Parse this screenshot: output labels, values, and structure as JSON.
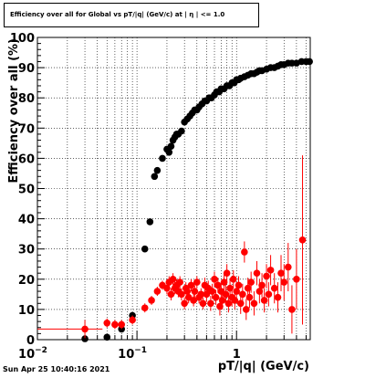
{
  "timestamp": "Sun Apr 25 10:40:16 2021",
  "chart_data": {
    "type": "scatter",
    "title": "Efficiency over all for Global vs pT/|q| (GeV/c) at | η | <= 1.0",
    "xlabel": "pT/|q| (GeV/c)",
    "ylabel": "Efficiency over all (%)",
    "xscale": "log",
    "xlim": [
      0.01,
      5.5
    ],
    "ylim": [
      0,
      100
    ],
    "x_tick_labels": [
      {
        "value": 0.01,
        "label": "10",
        "exp": "−2"
      },
      {
        "value": 0.1,
        "label": "10",
        "exp": "−1"
      },
      {
        "value": 1,
        "label": "1",
        "exp": ""
      }
    ],
    "y_ticks": [
      0,
      10,
      20,
      30,
      40,
      50,
      60,
      70,
      80,
      90,
      100
    ],
    "grid": true,
    "legend": "none",
    "series": [
      {
        "color": "#000000",
        "points": [
          [
            0.03,
            0.3,
            0
          ],
          [
            0.05,
            0.8,
            0
          ],
          [
            0.07,
            3.5,
            0
          ],
          [
            0.09,
            8,
            0
          ],
          [
            0.12,
            30,
            0
          ],
          [
            0.135,
            39,
            0
          ],
          [
            0.15,
            54,
            0
          ],
          [
            0.16,
            56,
            0
          ],
          [
            0.18,
            60,
            0
          ],
          [
            0.2,
            63,
            0
          ],
          [
            0.21,
            62,
            0
          ],
          [
            0.22,
            64,
            0
          ],
          [
            0.23,
            66,
            0
          ],
          [
            0.24,
            67,
            0
          ],
          [
            0.25,
            68,
            0
          ],
          [
            0.26,
            68,
            0
          ],
          [
            0.28,
            69,
            0
          ],
          [
            0.3,
            72,
            0
          ],
          [
            0.32,
            73,
            0
          ],
          [
            0.34,
            74,
            0
          ],
          [
            0.36,
            75,
            0
          ],
          [
            0.38,
            76,
            0
          ],
          [
            0.4,
            76,
            0
          ],
          [
            0.42,
            77,
            0
          ],
          [
            0.45,
            78,
            0
          ],
          [
            0.48,
            79,
            0
          ],
          [
            0.5,
            79,
            0
          ],
          [
            0.53,
            80,
            0
          ],
          [
            0.56,
            80,
            0
          ],
          [
            0.6,
            81,
            0
          ],
          [
            0.63,
            82,
            0
          ],
          [
            0.67,
            82,
            0
          ],
          [
            0.7,
            83,
            0
          ],
          [
            0.75,
            83,
            0
          ],
          [
            0.8,
            84,
            0
          ],
          [
            0.85,
            84,
            0
          ],
          [
            0.9,
            85,
            0
          ],
          [
            0.95,
            85,
            0
          ],
          [
            1.0,
            86,
            0
          ],
          [
            1.05,
            86,
            0
          ],
          [
            1.1,
            86.5,
            0
          ],
          [
            1.2,
            87,
            0
          ],
          [
            1.3,
            87.5,
            0
          ],
          [
            1.4,
            88,
            0
          ],
          [
            1.5,
            88,
            0
          ],
          [
            1.6,
            88.5,
            0
          ],
          [
            1.7,
            89,
            0
          ],
          [
            1.8,
            89,
            0
          ],
          [
            2.0,
            89.5,
            0
          ],
          [
            2.2,
            90,
            0
          ],
          [
            2.4,
            90,
            0
          ],
          [
            2.6,
            90.5,
            0
          ],
          [
            2.8,
            91,
            0
          ],
          [
            3.0,
            91,
            0
          ],
          [
            3.3,
            91.5,
            0
          ],
          [
            3.6,
            91.5,
            0
          ],
          [
            4.0,
            91.5,
            0
          ],
          [
            4.5,
            92,
            0
          ],
          [
            5.0,
            92,
            0
          ],
          [
            5.4,
            92,
            0
          ]
        ]
      },
      {
        "color": "#ff0000",
        "points": [
          [
            0.03,
            3.5,
            3
          ],
          [
            0.05,
            5.5,
            1.5
          ],
          [
            0.06,
            5,
            1.5
          ],
          [
            0.07,
            5,
            1.5
          ],
          [
            0.09,
            6.5,
            1.5
          ],
          [
            0.12,
            10.5,
            1.5
          ],
          [
            0.14,
            13,
            1.5
          ],
          [
            0.16,
            16,
            1.5
          ],
          [
            0.18,
            18,
            1.5
          ],
          [
            0.2,
            17,
            2
          ],
          [
            0.21,
            19,
            2
          ],
          [
            0.22,
            15,
            2
          ],
          [
            0.23,
            20,
            2
          ],
          [
            0.24,
            17,
            2
          ],
          [
            0.25,
            18,
            2
          ],
          [
            0.26,
            16,
            2
          ],
          [
            0.27,
            19,
            2
          ],
          [
            0.28,
            15,
            2
          ],
          [
            0.3,
            12,
            2
          ],
          [
            0.31,
            17,
            2
          ],
          [
            0.32,
            16,
            2
          ],
          [
            0.33,
            14,
            2
          ],
          [
            0.35,
            18,
            2
          ],
          [
            0.37,
            13,
            2
          ],
          [
            0.38,
            16,
            2
          ],
          [
            0.4,
            19,
            2
          ],
          [
            0.42,
            14,
            2
          ],
          [
            0.44,
            15,
            2
          ],
          [
            0.46,
            12,
            2
          ],
          [
            0.48,
            18,
            2.5
          ],
          [
            0.5,
            15,
            2.5
          ],
          [
            0.52,
            17,
            2.5
          ],
          [
            0.55,
            12,
            2.5
          ],
          [
            0.57,
            16,
            2.5
          ],
          [
            0.6,
            20,
            2.5
          ],
          [
            0.62,
            14,
            2.5
          ],
          [
            0.65,
            18,
            2.5
          ],
          [
            0.68,
            11,
            3
          ],
          [
            0.7,
            16,
            3
          ],
          [
            0.72,
            13,
            3
          ],
          [
            0.75,
            19,
            3
          ],
          [
            0.78,
            15,
            3
          ],
          [
            0.8,
            22,
            3
          ],
          [
            0.83,
            12,
            3
          ],
          [
            0.86,
            17,
            3
          ],
          [
            0.9,
            14,
            3
          ],
          [
            0.93,
            20,
            3
          ],
          [
            0.96,
            13,
            3
          ],
          [
            1.0,
            16,
            3
          ],
          [
            1.05,
            18,
            3
          ],
          [
            1.1,
            12,
            3.5
          ],
          [
            1.15,
            15,
            3.5
          ],
          [
            1.2,
            29,
            3.5
          ],
          [
            1.25,
            10,
            3.5
          ],
          [
            1.3,
            17,
            3.5
          ],
          [
            1.35,
            14,
            3.5
          ],
          [
            1.4,
            19,
            3.5
          ],
          [
            1.5,
            12,
            4
          ],
          [
            1.6,
            22,
            4
          ],
          [
            1.7,
            16,
            4
          ],
          [
            1.8,
            18,
            4
          ],
          [
            1.9,
            13,
            4
          ],
          [
            2.0,
            21,
            4
          ],
          [
            2.1,
            15,
            4
          ],
          [
            2.2,
            23,
            5
          ],
          [
            2.4,
            17,
            5
          ],
          [
            2.6,
            14,
            5
          ],
          [
            2.8,
            22,
            6
          ],
          [
            3.0,
            19,
            6
          ],
          [
            3.3,
            24,
            8
          ],
          [
            3.6,
            10,
            8
          ],
          [
            4.0,
            20,
            10
          ],
          [
            4.6,
            33,
            28
          ]
        ]
      }
    ],
    "x_error_halfwidth_low": [
      [
        0.03,
        0.01,
        0.045
      ]
    ]
  }
}
